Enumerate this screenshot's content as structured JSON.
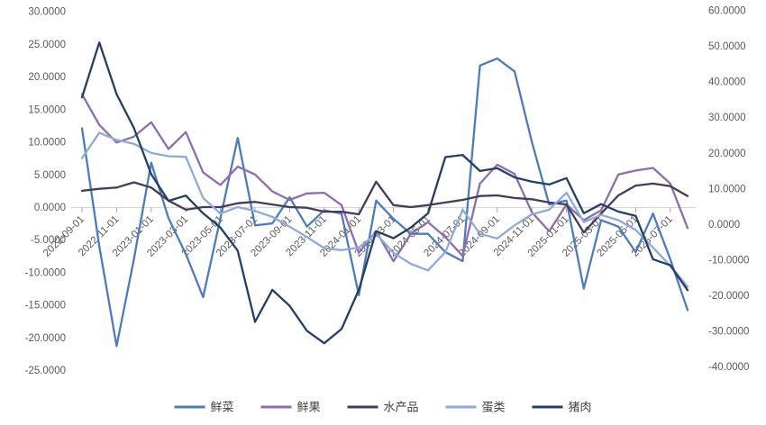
{
  "chart_data": {
    "type": "line",
    "title": "",
    "xlabel": "",
    "ylabel_left": "",
    "ylabel_right": "",
    "legend_position": "bottom",
    "gridlines": "zero-line-only",
    "x": [
      "2022-09-01",
      "2022-10-01",
      "2022-11-01",
      "2022-12-01",
      "2023-01-01",
      "2023-02-01",
      "2023-03-01",
      "2023-04-01",
      "2023-05-01",
      "2023-06-01",
      "2023-07-01",
      "2023-08-01",
      "2023-09-01",
      "2023-10-01",
      "2023-11-01",
      "2023-12-01",
      "2024-01-01",
      "2024-02-01",
      "2024-03-01",
      "2024-04-01",
      "2024-05-01",
      "2024-06-01",
      "2024-07-01",
      "2024-08-01",
      "2024-09-01",
      "2024-10-01",
      "2024-11-01",
      "2024-12-01",
      "2025-01-01",
      "2025-02-01",
      "2025-03-01",
      "2025-04-01",
      "2025-05-01",
      "2025-06-01",
      "2025-07-01",
      "2025-08-01"
    ],
    "x_label_every": 2,
    "left_axis": {
      "min": -25,
      "max": 30,
      "step": 5,
      "tick_labels": [
        "30.0000",
        "25.0000",
        "20.0000",
        "15.0000",
        "10.0000",
        "5.0000",
        "0.0000",
        "-5.0000",
        "-10.0000",
        "-15.0000",
        "-20.0000",
        "-25.0000"
      ]
    },
    "right_axis": {
      "min": -40,
      "max": 60,
      "step": 10,
      "tick_labels": [
        "60.0000",
        "50.0000",
        "40.0000",
        "30.0000",
        "20.0000",
        "10.0000",
        "0.0000",
        "-10.0000",
        "-20.0000",
        "-30.0000",
        "-40.0000"
      ]
    },
    "series": [
      {
        "name": "鲜菜",
        "axis": "left",
        "color": "#4a7cc0",
        "values": [
          12.1,
          -6.0,
          -21.3,
          -8.0,
          6.8,
          -1.7,
          -7.2,
          -13.8,
          -1.7,
          10.6,
          -2.8,
          -2.5,
          1.5,
          -3.0,
          -0.5,
          -1.0,
          -13.5,
          1.0,
          -1.8,
          -4.1,
          -4.1,
          -6.9,
          -8.3,
          21.7,
          22.8,
          20.8,
          10.0,
          0.4,
          1.0,
          -12.5,
          -2.0,
          -3.0,
          -6.9,
          -1.0,
          -8.0,
          -15.8
        ]
      },
      {
        "name": "鲜果",
        "axis": "left",
        "color": "#8e6cb0",
        "values": [
          17.3,
          12.6,
          9.9,
          10.8,
          13.0,
          8.9,
          11.5,
          5.3,
          3.4,
          6.2,
          5.0,
          2.4,
          1.1,
          2.1,
          2.2,
          0.3,
          -7.0,
          -3.7,
          -8.3,
          -4.1,
          -2.3,
          -4.6,
          -7.5,
          3.6,
          6.5,
          5.1,
          -0.8,
          -3.7,
          0.4,
          -2.0,
          -0.5,
          5.0,
          5.6,
          6.0,
          3.6,
          -3.2
        ]
      },
      {
        "name": "水产品",
        "axis": "left",
        "color": "#463a5e",
        "values": [
          2.5,
          2.8,
          3.0,
          3.8,
          3.0,
          1.0,
          -0.4,
          0.0,
          0.0,
          0.6,
          0.8,
          0.4,
          0.0,
          -0.1,
          -0.7,
          -0.7,
          -1.1,
          3.9,
          0.3,
          0.0,
          0.3,
          0.7,
          1.1,
          1.7,
          1.8,
          1.4,
          1.2,
          0.7,
          0.4,
          -3.9,
          -1.0,
          1.8,
          3.3,
          3.6,
          3.2,
          1.7
        ]
      },
      {
        "name": "蛋类",
        "axis": "left",
        "color": "#8cabdb",
        "values": [
          7.5,
          11.4,
          10.3,
          9.7,
          8.3,
          7.8,
          7.7,
          1.4,
          -1.0,
          0.0,
          -0.6,
          -1.5,
          -3.0,
          -4.6,
          -6.3,
          -6.6,
          -6.2,
          -4.1,
          -7.0,
          -8.7,
          -9.7,
          -6.9,
          -0.4,
          -4.1,
          -4.8,
          -2.8,
          -1.1,
          -0.4,
          2.2,
          -2.3,
          -1.2,
          -2.0,
          -3.5,
          -6.2,
          -9.0,
          -12.2
        ]
      },
      {
        "name": "猪肉",
        "axis": "right",
        "color": "#223f6a",
        "values": [
          35.6,
          51.0,
          36.5,
          27.0,
          14.0,
          6.5,
          8.0,
          3.0,
          -1.0,
          -7.5,
          -27.5,
          -18.5,
          -23.0,
          -30.0,
          -33.5,
          -29.5,
          -18.5,
          -2.0,
          -4.0,
          -1.0,
          3.0,
          18.8,
          19.4,
          14.9,
          15.7,
          13.1,
          11.9,
          11.1,
          12.9,
          3.0,
          5.6,
          3.5,
          2.3,
          -9.9,
          -11.6,
          -18.6
        ]
      }
    ],
    "legend": [
      "鲜菜",
      "鲜果",
      "水产品",
      "蛋类",
      "猪肉"
    ]
  },
  "style": {
    "axis_text_color": "#595959",
    "legend_text_color": "#404040",
    "axis_line_color": "#d9d9d9",
    "tick_color": "#a6a6a6",
    "background": "#ffffff"
  }
}
